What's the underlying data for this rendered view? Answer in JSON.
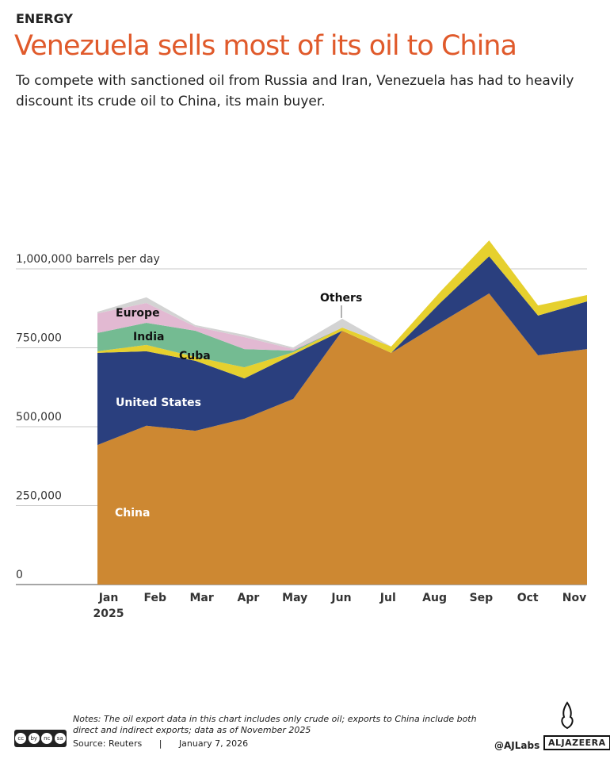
{
  "header": {
    "kicker": "ENERGY",
    "title": "Venezuela sells most of its oil to China",
    "subtitle": "To compete with sanctioned oil from Russia and Iran, Venezuela has had to heavily discount its crude oil to China, its main buyer."
  },
  "chart_data": {
    "type": "area",
    "stacked": true,
    "title": "",
    "xlabel": "",
    "ylabel": "barrels per day",
    "ylim": [
      0,
      1000000
    ],
    "yticks": [
      0,
      250000,
      500000,
      750000,
      1000000
    ],
    "ytick_labels": [
      "0",
      "250,000",
      "500,000",
      "750,000",
      "1,000,000 barrels per day"
    ],
    "grid": true,
    "legend": "inline labels",
    "categories": [
      "Jan",
      "Feb",
      "Mar",
      "Apr",
      "May",
      "Jun",
      "Jul",
      "Aug",
      "Sep",
      "Oct",
      "Nov"
    ],
    "year_label": "2025",
    "series": [
      {
        "name": "China",
        "color": "#cd8832",
        "values": [
          442000,
          503000,
          487000,
          525000,
          588000,
          804000,
          734000,
          829000,
          922000,
          726000,
          746000
        ]
      },
      {
        "name": "United States",
        "color": "#2a3f7e",
        "values": [
          292000,
          236000,
          222000,
          128000,
          141000,
          0,
          0,
          63000,
          118000,
          126000,
          151000
        ]
      },
      {
        "name": "Cuba",
        "color": "#e6d02e",
        "values": [
          5000,
          20000,
          12000,
          35000,
          7000,
          10000,
          20000,
          35000,
          50000,
          32000,
          20000
        ]
      },
      {
        "name": "India",
        "color": "#74bb92",
        "values": [
          58000,
          70000,
          83000,
          58000,
          5000,
          0,
          0,
          0,
          0,
          0,
          0
        ]
      },
      {
        "name": "Europe",
        "color": "#e2b9d2",
        "values": [
          62000,
          63000,
          13000,
          38000,
          5000,
          0,
          0,
          0,
          0,
          0,
          0
        ]
      },
      {
        "name": "Others",
        "color": "#d3d3d3",
        "values": [
          5000,
          18000,
          5000,
          7000,
          5000,
          28000,
          0,
          0,
          0,
          0,
          0
        ]
      }
    ]
  },
  "footer": {
    "notes": "Notes: The oil export data in this chart includes only crude oil; exports to China include both direct and indirect exports; data as of November 2025",
    "source": "Source:  Reuters",
    "separator": "|",
    "date": "January 7, 2026",
    "handle": "@AJLabs",
    "logo": "ALJAZEERA",
    "license": "CC BY NC SA"
  }
}
